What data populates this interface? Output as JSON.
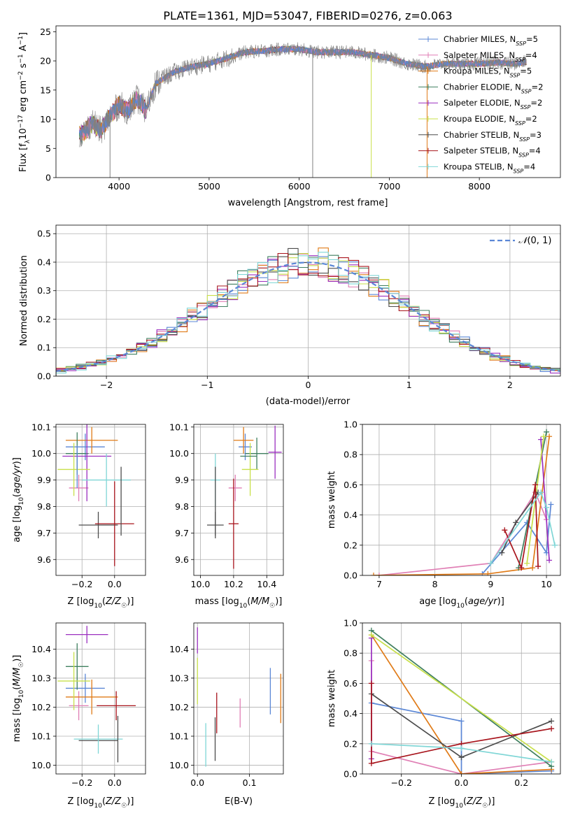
{
  "figure_title": "PLATE=1361, MJD=53047, FIBERID=0276, z=0.063",
  "colors": {
    "chabrier_miles": "#5b87d6",
    "salpeter_miles": "#e07fb5",
    "kroupa_miles": "#e07b18",
    "chabrier_elodie": "#3f7f5f",
    "salpeter_elodie": "#9b2fbf",
    "kroupa_elodie": "#c8e04a",
    "chabrier_stelib": "#4d4d4d",
    "salpeter_stelib": "#a8141c",
    "kroupa_stelib": "#7fd6d6",
    "spectrum": "#808080",
    "normal": "#5b87d6"
  },
  "chart_data": [
    {
      "id": "spectrum",
      "type": "line",
      "title": "",
      "xlabel": "wavelength [Angstrom, rest frame]",
      "ylabel": "Flux [fλ10⁻¹⁷ erg cm⁻² s⁻¹ A⁻¹]",
      "xlim": [
        3300,
        8900
      ],
      "ylim": [
        0,
        26
      ],
      "xticks": [
        4000,
        5000,
        6000,
        7000,
        8000
      ],
      "yticks": [
        0,
        5,
        10,
        15,
        20,
        25
      ],
      "grid": false,
      "legend": "top-right",
      "legend_entries": [
        "Chabrier MILES, N_SSP=5",
        "Salpeter MILES, N_SSP=4",
        "Kroupa MILES, N_SSP=5",
        "Chabrier ELODIE, N_SSP=2",
        "Salpeter ELODIE, N_SSP=2",
        "Kroupa ELODIE, N_SSP=2",
        "Chabrier STELIB, N_SSP=3",
        "Salpeter STELIB, N_SSP=4",
        "Kroupa STELIB, N_SSP=4"
      ],
      "legend_labels": [
        {
          "text": "Chabrier MILES, N",
          "sub": "SSP",
          "rest": "=5"
        },
        {
          "text": "Salpeter MILES, N",
          "sub": "SSP",
          "rest": "=4"
        },
        {
          "text": "Kroupa MILES, N",
          "sub": "SSP",
          "rest": "=5"
        },
        {
          "text": "Chabrier ELODIE, N",
          "sub": "SSP",
          "rest": "=2"
        },
        {
          "text": "Salpeter ELODIE, N",
          "sub": "SSP",
          "rest": "=2"
        },
        {
          "text": "Kroupa ELODIE, N",
          "sub": "SSP",
          "rest": "=2"
        },
        {
          "text": "Chabrier STELIB, N",
          "sub": "SSP",
          "rest": "=3"
        },
        {
          "text": "Salpeter STELIB, N",
          "sub": "SSP",
          "rest": "=4"
        },
        {
          "text": "Kroupa STELIB, N",
          "sub": "SSP",
          "rest": "=4"
        }
      ],
      "continuum": {
        "x": [
          3600,
          3700,
          3800,
          3900,
          4000,
          4100,
          4200,
          4300,
          4400,
          4500,
          4600,
          4800,
          5000,
          5200,
          5400,
          5600,
          5800,
          6000,
          6200,
          6400,
          6600,
          6800,
          7000,
          7200,
          7400,
          7600,
          7800,
          8000,
          8200,
          8400,
          8500
        ],
        "y": [
          7.5,
          9.5,
          8,
          10.5,
          12.5,
          11.5,
          13.5,
          11.5,
          16,
          17,
          18,
          19,
          19.5,
          20.5,
          21.5,
          21.7,
          22,
          22,
          21.5,
          21.5,
          21.5,
          21,
          20.5,
          19.5,
          19,
          19.5,
          19.5,
          19.5,
          19.7,
          19.5,
          19.8
        ]
      },
      "dropouts": [
        3900,
        6150,
        6800,
        7420
      ]
    },
    {
      "id": "residual_hist",
      "type": "histogram",
      "title": "",
      "xlabel": "(data-model)/error",
      "ylabel": "Normed distribution",
      "xlim": [
        -2.5,
        2.5
      ],
      "ylim": [
        0,
        0.53
      ],
      "xticks": [
        -2,
        -1,
        0,
        1,
        2
      ],
      "yticks": [
        0.0,
        0.1,
        0.2,
        0.3,
        0.4,
        0.5
      ],
      "grid": true,
      "legend": "top-right",
      "reference_curve": {
        "name": "N(0,1)",
        "mean": 0,
        "sigma": 1
      },
      "bin_width": 0.1
    },
    {
      "id": "age_vs_Z",
      "type": "errorbar",
      "xlabel": "Z [log10(Z/Z☉)]",
      "ylabel": "age  [log10(age/yr)]",
      "xlim": [
        -0.36,
        0.19
      ],
      "ylim": [
        9.54,
        10.11
      ],
      "xticks": [
        -0.2,
        0.0
      ],
      "yticks": [
        9.6,
        9.7,
        9.8,
        9.9,
        10.0,
        10.1
      ],
      "grid": true,
      "points": [
        {
          "c": "chabrier_miles",
          "x": -0.18,
          "xe": 0.12,
          "y": 10.025,
          "ye": 0.05
        },
        {
          "c": "salpeter_miles",
          "x": -0.22,
          "xe": 0.06,
          "y": 9.87,
          "ye": 0.05
        },
        {
          "c": "kroupa_miles",
          "x": -0.14,
          "xe": 0.16,
          "y": 10.05,
          "ye": 0.05
        },
        {
          "c": "chabrier_elodie",
          "x": -0.23,
          "xe": 0.07,
          "y": 10.0,
          "ye": 0.08
        },
        {
          "c": "salpeter_elodie",
          "x": -0.17,
          "xe": 0.15,
          "y": 9.99,
          "ye": 0.17
        },
        {
          "c": "kroupa_elodie",
          "x": -0.25,
          "xe": 0.1,
          "y": 9.94,
          "ye": 0.1
        },
        {
          "c": "chabrier_stelib",
          "x": -0.1,
          "xe": 0.12,
          "y": 9.73,
          "ye": 0.05
        },
        {
          "c": "salpeter_stelib",
          "x": 0.0,
          "xe": 0.12,
          "y": 9.735,
          "ye": 0.16
        },
        {
          "c": "kroupa_stelib",
          "x": -0.05,
          "xe": 0.15,
          "y": 9.9,
          "ye": 0.1
        },
        {
          "c": "chabrier_stelib",
          "x": 0.04,
          "xe": 0.0,
          "y": 9.82,
          "ye": 0.13
        },
        {
          "c": "chabrier_miles",
          "x": -0.23,
          "xe": 0.0,
          "y": 9.95,
          "ye": 0.08
        }
      ]
    },
    {
      "id": "age_vs_mass",
      "type": "errorbar",
      "xlabel": "mass [log10(M/M☉)]",
      "ylabel": "",
      "xlim": [
        9.96,
        10.5
      ],
      "ylim": [
        9.54,
        10.11
      ],
      "xticks": [
        10.0,
        10.2,
        10.4
      ],
      "yticks": [
        9.6,
        9.7,
        9.8,
        9.9,
        10.0,
        10.1
      ],
      "grid": true,
      "points": [
        {
          "c": "chabrier_miles",
          "x": 10.27,
          "xe": 0.04,
          "y": 10.025,
          "ye": 0.05
        },
        {
          "c": "salpeter_miles",
          "x": 10.21,
          "xe": 0.04,
          "y": 9.87,
          "ye": 0.05
        },
        {
          "c": "kroupa_miles",
          "x": 10.26,
          "xe": 0.06,
          "y": 10.05,
          "ye": 0.05
        },
        {
          "c": "chabrier_elodie",
          "x": 10.34,
          "xe": 0.07,
          "y": 10.0,
          "ye": 0.06
        },
        {
          "c": "salpeter_elodie",
          "x": 10.45,
          "xe": 0.04,
          "y": 10.005,
          "ye": 0.1
        },
        {
          "c": "kroupa_elodie",
          "x": 10.3,
          "xe": 0.05,
          "y": 9.94,
          "ye": 0.1
        },
        {
          "c": "chabrier_stelib",
          "x": 10.09,
          "xe": 0.05,
          "y": 9.73,
          "ye": 0.05
        },
        {
          "c": "salpeter_stelib",
          "x": 10.2,
          "xe": 0.03,
          "y": 9.735,
          "ye": 0.17
        },
        {
          "c": "kroupa_stelib",
          "x": 10.09,
          "xe": 0.03,
          "y": 9.9,
          "ye": 0.1
        },
        {
          "c": "chabrier_stelib",
          "x": 10.09,
          "xe": 0.0,
          "y": 9.82,
          "ye": 0.13
        },
        {
          "c": "chabrier_elodie",
          "x": 10.29,
          "xe": 0.05,
          "y": 9.99,
          "ye": 0.0
        }
      ]
    },
    {
      "id": "mass_weight_vs_age",
      "type": "line",
      "xlabel": "age  [log10(age/yr)]",
      "ylabel": "mass weight",
      "xlim": [
        6.7,
        10.25
      ],
      "ylim": [
        0,
        1
      ],
      "xticks": [
        7,
        8,
        9,
        10
      ],
      "yticks": [
        0.0,
        0.2,
        0.4,
        0.6,
        0.8,
        1.0
      ],
      "grid": true,
      "series": [
        {
          "c": "chabrier_miles",
          "x": [
            8.85,
            9.65,
            10.0,
            10.08
          ],
          "y": [
            0.01,
            0.35,
            0.15,
            0.47
          ]
        },
        {
          "c": "salpeter_miles",
          "x": [
            7.0,
            9.0,
            9.8,
            10.0
          ],
          "y": [
            0.0,
            0.08,
            0.55,
            0.37
          ]
        },
        {
          "c": "kroupa_miles",
          "x": [
            6.9,
            8.95,
            9.75,
            10.05
          ],
          "y": [
            0.0,
            0.01,
            0.05,
            0.92
          ]
        },
        {
          "c": "chabrier_elodie",
          "x": [
            9.5,
            10.0
          ],
          "y": [
            0.05,
            0.95
          ]
        },
        {
          "c": "salpeter_elodie",
          "x": [
            9.9,
            10.05
          ],
          "y": [
            0.9,
            0.1
          ]
        },
        {
          "c": "kroupa_elodie",
          "x": [
            9.65,
            9.95
          ],
          "y": [
            0.08,
            0.92
          ]
        },
        {
          "c": "chabrier_stelib",
          "x": [
            9.2,
            9.45,
            9.85
          ],
          "y": [
            0.15,
            0.35,
            0.55
          ]
        },
        {
          "c": "salpeter_stelib",
          "x": [
            9.25,
            9.55,
            9.8,
            9.85
          ],
          "y": [
            0.3,
            0.05,
            0.6,
            0.06
          ]
        },
        {
          "c": "kroupa_stelib",
          "x": [
            9.0,
            9.9,
            10.0,
            10.15
          ],
          "y": [
            0.08,
            0.55,
            0.45,
            0.2
          ]
        }
      ]
    },
    {
      "id": "mass_vs_Z",
      "type": "errorbar",
      "xlabel": "Z [log10(Z/Z☉)]",
      "ylabel": "mass [log10(M/M☉)]",
      "xlim": [
        -0.36,
        0.19
      ],
      "ylim": [
        9.97,
        10.49
      ],
      "xticks": [
        -0.2,
        0.0
      ],
      "yticks": [
        10.0,
        10.1,
        10.2,
        10.3,
        10.4
      ],
      "grid": true,
      "points": [
        {
          "c": "chabrier_miles",
          "x": -0.18,
          "xe": 0.12,
          "y": 10.265,
          "ye": 0.05
        },
        {
          "c": "salpeter_miles",
          "x": -0.22,
          "xe": 0.06,
          "y": 10.205,
          "ye": 0.05
        },
        {
          "c": "kroupa_miles",
          "x": -0.14,
          "xe": 0.16,
          "y": 10.235,
          "ye": 0.06
        },
        {
          "c": "chabrier_elodie",
          "x": -0.23,
          "xe": 0.07,
          "y": 10.34,
          "ye": 0.08
        },
        {
          "c": "salpeter_elodie",
          "x": -0.17,
          "xe": 0.13,
          "y": 10.45,
          "ye": 0.03
        },
        {
          "c": "kroupa_elodie",
          "x": -0.25,
          "xe": 0.1,
          "y": 10.29,
          "ye": 0.1
        },
        {
          "c": "chabrier_stelib",
          "x": -0.1,
          "xe": 0.12,
          "y": 10.085,
          "ye": 0.0
        },
        {
          "c": "salpeter_stelib",
          "x": 0.01,
          "xe": 0.12,
          "y": 10.205,
          "ye": 0.05
        },
        {
          "c": "kroupa_stelib",
          "x": -0.1,
          "xe": 0.15,
          "y": 10.09,
          "ye": 0.05
        },
        {
          "c": "chabrier_stelib",
          "x": 0.02,
          "xe": 0.0,
          "y": 10.09,
          "ye": 0.08
        }
      ]
    },
    {
      "id": "mass_vs_ebv",
      "type": "errorbar",
      "xlabel": "E(B-V)",
      "ylabel": "",
      "xlim": [
        -0.007,
        0.165
      ],
      "ylim": [
        9.97,
        10.49
      ],
      "xticks": [
        0.0,
        0.1
      ],
      "yticks": [
        10.0,
        10.1,
        10.2,
        10.3,
        10.4
      ],
      "grid": true,
      "points": [
        {
          "c": "salpeter_elodie",
          "x": 0.0,
          "xe": 0.0,
          "y": 10.43,
          "ye": 0.045
        },
        {
          "c": "kroupa_elodie",
          "x": 0.0,
          "xe": 0.0,
          "y": 10.29,
          "ye": 0.08
        },
        {
          "c": "kroupa_stelib",
          "x": 0.016,
          "xe": 0.0,
          "y": 10.07,
          "ye": 0.075
        },
        {
          "c": "chabrier_stelib",
          "x": 0.034,
          "xe": 0.0,
          "y": 10.09,
          "ye": 0.075
        },
        {
          "c": "salpeter_stelib",
          "x": 0.037,
          "xe": 0.0,
          "y": 10.18,
          "ye": 0.07
        },
        {
          "c": "salpeter_miles",
          "x": 0.082,
          "xe": 0.0,
          "y": 10.18,
          "ye": 0.05
        },
        {
          "c": "chabrier_miles",
          "x": 0.14,
          "xe": 0.0,
          "y": 10.255,
          "ye": 0.08
        },
        {
          "c": "kroupa_miles",
          "x": 0.16,
          "xe": 0.0,
          "y": 10.23,
          "ye": 0.085
        }
      ]
    },
    {
      "id": "mass_weight_vs_Z",
      "type": "line",
      "xlabel": "Z [log10(Z/Z☉)]",
      "ylabel": "mass weight",
      "xlim": [
        -0.33,
        0.33
      ],
      "ylim": [
        0,
        1
      ],
      "xticks": [
        -0.2,
        0.0,
        0.2
      ],
      "yticks": [
        0.0,
        0.2,
        0.4,
        0.6,
        0.8,
        1.0
      ],
      "grid": true,
      "series": [
        {
          "c": "chabrier_miles",
          "x": [
            -0.3,
            0.0,
            0.0,
            0.3
          ],
          "y": [
            0.47,
            0.35,
            0.0,
            0.02
          ]
        },
        {
          "c": "salpeter_miles",
          "x": [
            -0.3,
            -0.3,
            0.0,
            0.3
          ],
          "y": [
            0.75,
            0.15,
            0.0,
            0.08
          ]
        },
        {
          "c": "kroupa_miles",
          "x": [
            -0.3,
            0.0,
            0.3
          ],
          "y": [
            0.92,
            0.0,
            0.03
          ]
        },
        {
          "c": "chabrier_elodie",
          "x": [
            -0.3,
            0.3
          ],
          "y": [
            0.95,
            0.05
          ]
        },
        {
          "c": "salpeter_elodie",
          "x": [
            -0.3,
            -0.3
          ],
          "y": [
            0.9,
            0.1
          ]
        },
        {
          "c": "kroupa_elodie",
          "x": [
            -0.3,
            0.3
          ],
          "y": [
            0.92,
            0.08
          ]
        },
        {
          "c": "chabrier_stelib",
          "x": [
            -0.3,
            0.0,
            0.3
          ],
          "y": [
            0.53,
            0.11,
            0.35
          ]
        },
        {
          "c": "salpeter_stelib",
          "x": [
            -0.3,
            -0.3,
            0.0,
            0.3
          ],
          "y": [
            0.6,
            0.07,
            0.2,
            0.3
          ]
        },
        {
          "c": "kroupa_stelib",
          "x": [
            -0.3,
            0.0,
            0.3
          ],
          "y": [
            0.2,
            0.17,
            0.08
          ]
        }
      ]
    }
  ]
}
